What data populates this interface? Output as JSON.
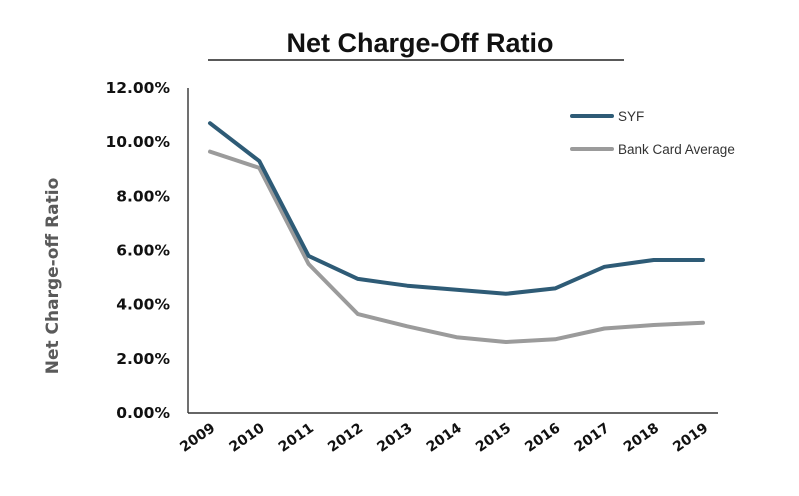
{
  "chart_data": {
    "type": "line",
    "title": "Net Charge-Off Ratio",
    "xlabel": "",
    "ylabel": "Net Charge-off Ratio",
    "categories": [
      "2009",
      "2010",
      "2011",
      "2012",
      "2013",
      "2014",
      "2015",
      "2016",
      "2017",
      "2018",
      "2019"
    ],
    "ylim": [
      0,
      12
    ],
    "y_ticks": [
      "0.00%",
      "2.00%",
      "4.00%",
      "6.00%",
      "8.00%",
      "10.00%",
      "12.00%"
    ],
    "series": [
      {
        "name": "SYF",
        "color": "#2e5b76",
        "values": [
          10.7,
          9.3,
          5.8,
          4.95,
          4.7,
          4.55,
          4.4,
          4.6,
          5.4,
          5.65,
          5.65
        ]
      },
      {
        "name": "Bank Card Average",
        "color": "#9b9b9b",
        "values": [
          9.65,
          9.05,
          5.5,
          3.65,
          3.2,
          2.8,
          2.62,
          2.72,
          3.12,
          3.25,
          3.33
        ]
      }
    ],
    "grid": false,
    "legend_position": "top-right"
  }
}
